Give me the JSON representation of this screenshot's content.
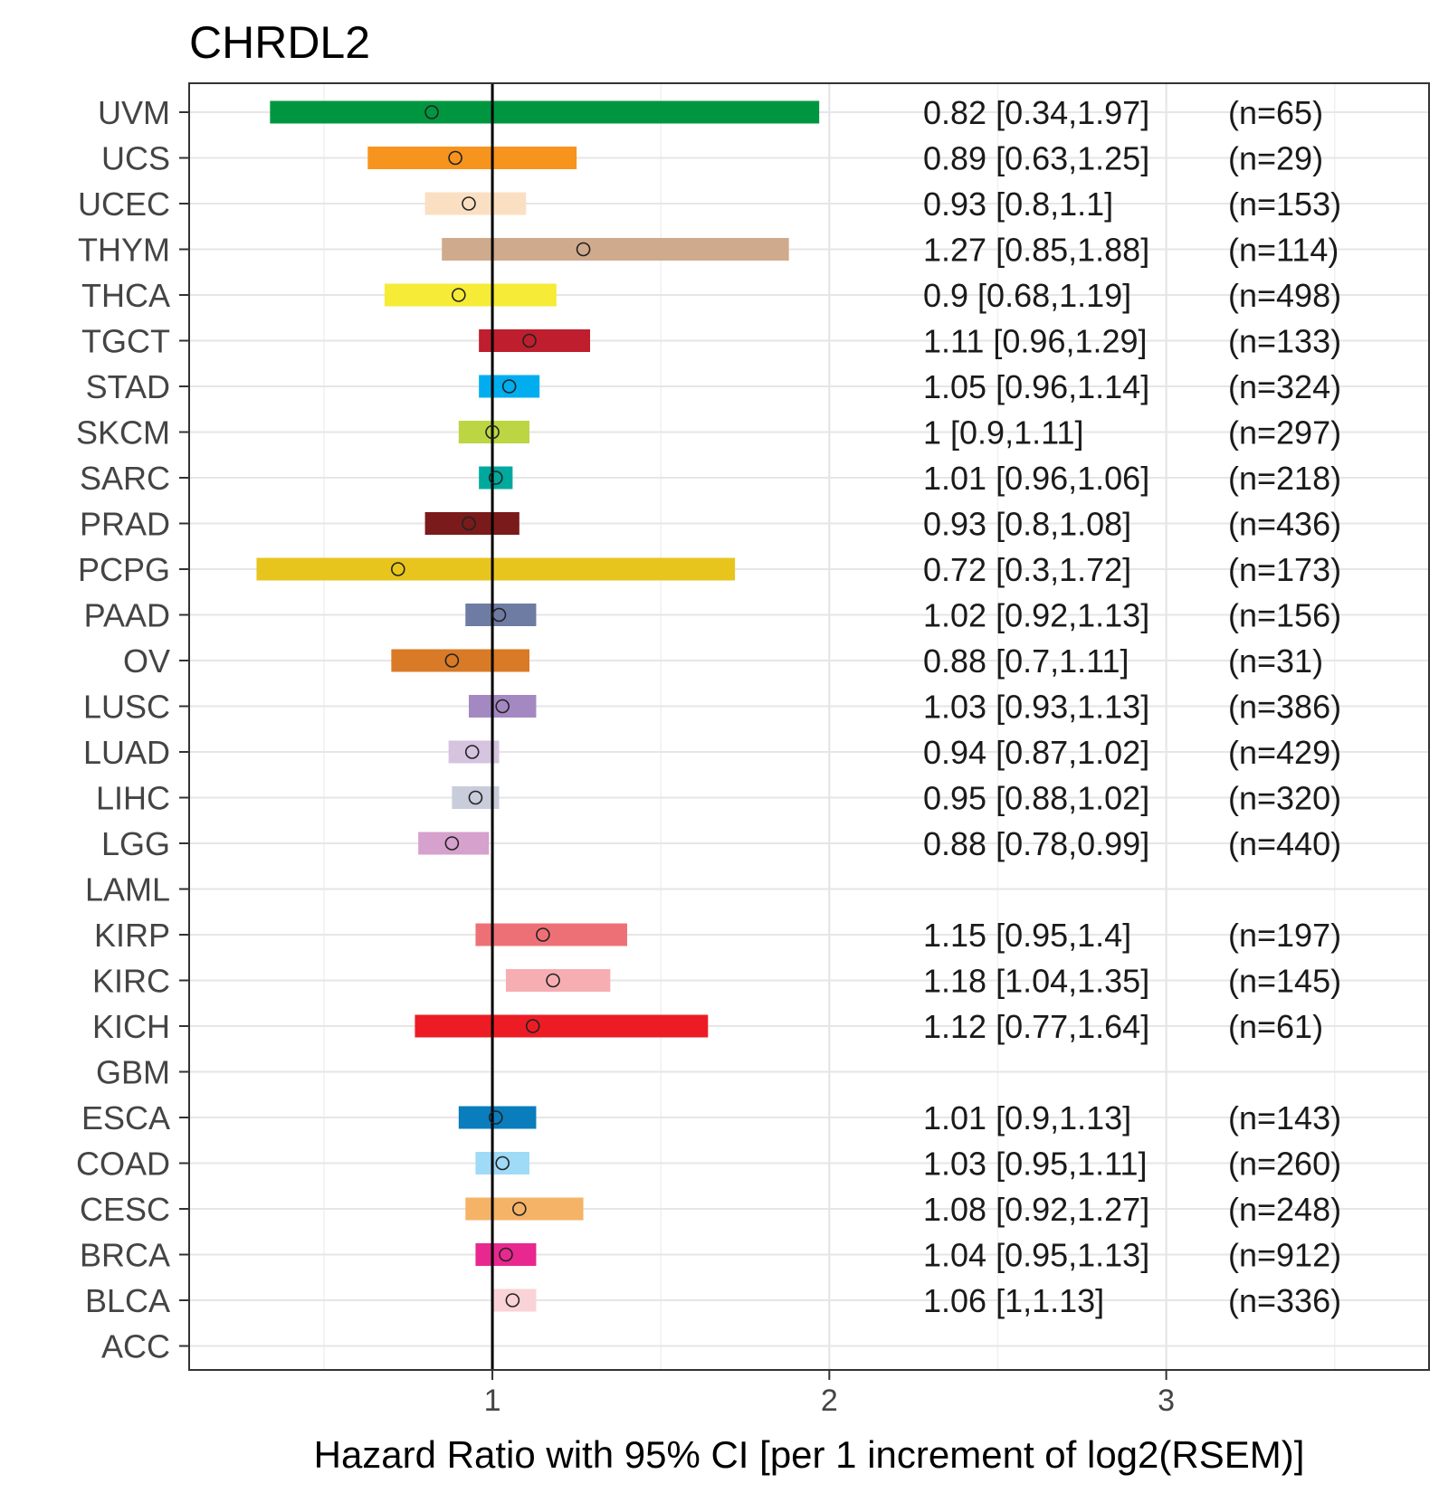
{
  "chart_data": {
    "type": "forest",
    "title": "CHRDL2",
    "xlabel": "Hazard Ratio with 95% CI [per 1 increment of log2(RSEM)]",
    "ylabel": "",
    "xlim": [
      0.1,
      3.78
    ],
    "xticks": [
      1,
      2,
      3
    ],
    "reference_line": 1,
    "grid": true,
    "rows": [
      {
        "cancer": "UVM",
        "hr": 0.82,
        "low": 0.34,
        "high": 1.97,
        "label": "0.82 [0.34,1.97]",
        "n": "(n=65)",
        "color": "#00963F"
      },
      {
        "cancer": "UCS",
        "hr": 0.89,
        "low": 0.63,
        "high": 1.25,
        "label": "0.89 [0.63,1.25]",
        "n": "(n=29)",
        "color": "#F7941E"
      },
      {
        "cancer": "UCEC",
        "hr": 0.93,
        "low": 0.8,
        "high": 1.1,
        "label": "0.93 [0.8,1.1]",
        "n": "(n=153)",
        "color": "#FBDFC2"
      },
      {
        "cancer": "THYM",
        "hr": 1.27,
        "low": 0.85,
        "high": 1.88,
        "label": "1.27 [0.85,1.88]",
        "n": "(n=114)",
        "color": "#CFAA8C"
      },
      {
        "cancer": "THCA",
        "hr": 0.9,
        "low": 0.68,
        "high": 1.19,
        "label": "0.9 [0.68,1.19]",
        "n": "(n=498)",
        "color": "#F6EB36"
      },
      {
        "cancer": "TGCT",
        "hr": 1.11,
        "low": 0.96,
        "high": 1.29,
        "label": "1.11 [0.96,1.29]",
        "n": "(n=133)",
        "color": "#BE1E2D"
      },
      {
        "cancer": "STAD",
        "hr": 1.05,
        "low": 0.96,
        "high": 1.14,
        "label": "1.05 [0.96,1.14]",
        "n": "(n=324)",
        "color": "#00AEEF"
      },
      {
        "cancer": "SKCM",
        "hr": 1,
        "low": 0.9,
        "high": 1.11,
        "label": "1 [0.9,1.11]",
        "n": "(n=297)",
        "color": "#BBD642"
      },
      {
        "cancer": "SARC",
        "hr": 1.01,
        "low": 0.96,
        "high": 1.06,
        "label": "1.01 [0.96,1.06]",
        "n": "(n=218)",
        "color": "#00A99D"
      },
      {
        "cancer": "PRAD",
        "hr": 0.93,
        "low": 0.8,
        "high": 1.08,
        "label": "0.93 [0.8,1.08]",
        "n": "(n=436)",
        "color": "#7B1A1A"
      },
      {
        "cancer": "PCPG",
        "hr": 0.72,
        "low": 0.3,
        "high": 1.72,
        "label": "0.72 [0.3,1.72]",
        "n": "(n=173)",
        "color": "#E8C51D"
      },
      {
        "cancer": "PAAD",
        "hr": 1.02,
        "low": 0.92,
        "high": 1.13,
        "label": "1.02 [0.92,1.13]",
        "n": "(n=156)",
        "color": "#6E7BA3"
      },
      {
        "cancer": "OV",
        "hr": 0.88,
        "low": 0.7,
        "high": 1.11,
        "label": "0.88 [0.7,1.11]",
        "n": "(n=31)",
        "color": "#D97A27"
      },
      {
        "cancer": "LUSC",
        "hr": 1.03,
        "low": 0.93,
        "high": 1.13,
        "label": "1.03 [0.93,1.13]",
        "n": "(n=386)",
        "color": "#A488C2"
      },
      {
        "cancer": "LUAD",
        "hr": 0.94,
        "low": 0.87,
        "high": 1.02,
        "label": "0.94 [0.87,1.02]",
        "n": "(n=429)",
        "color": "#D5C3E0"
      },
      {
        "cancer": "LIHC",
        "hr": 0.95,
        "low": 0.88,
        "high": 1.02,
        "label": "0.95 [0.88,1.02]",
        "n": "(n=320)",
        "color": "#C9CCDA"
      },
      {
        "cancer": "LGG",
        "hr": 0.88,
        "low": 0.78,
        "high": 0.99,
        "label": "0.88 [0.78,0.99]",
        "n": "(n=440)",
        "color": "#D6A1CC"
      },
      {
        "cancer": "LAML",
        "hr": null,
        "low": null,
        "high": null,
        "label": "",
        "n": "",
        "color": "#CCCCCC"
      },
      {
        "cancer": "KIRP",
        "hr": 1.15,
        "low": 0.95,
        "high": 1.4,
        "label": "1.15 [0.95,1.4]",
        "n": "(n=197)",
        "color": "#EE7077"
      },
      {
        "cancer": "KIRC",
        "hr": 1.18,
        "low": 1.04,
        "high": 1.35,
        "label": "1.18 [1.04,1.35]",
        "n": "(n=145)",
        "color": "#F7AEB3"
      },
      {
        "cancer": "KICH",
        "hr": 1.12,
        "low": 0.77,
        "high": 1.64,
        "label": "1.12 [0.77,1.64]",
        "n": "(n=61)",
        "color": "#ED1C24"
      },
      {
        "cancer": "GBM",
        "hr": null,
        "low": null,
        "high": null,
        "label": "",
        "n": "",
        "color": "#CCCCCC"
      },
      {
        "cancer": "ESCA",
        "hr": 1.01,
        "low": 0.9,
        "high": 1.13,
        "label": "1.01 [0.9,1.13]",
        "n": "(n=143)",
        "color": "#0A7DBD"
      },
      {
        "cancer": "COAD",
        "hr": 1.03,
        "low": 0.95,
        "high": 1.11,
        "label": "1.03 [0.95,1.11]",
        "n": "(n=260)",
        "color": "#9FDAF7"
      },
      {
        "cancer": "CESC",
        "hr": 1.08,
        "low": 0.92,
        "high": 1.27,
        "label": "1.08 [0.92,1.27]",
        "n": "(n=248)",
        "color": "#F5B367"
      },
      {
        "cancer": "BRCA",
        "hr": 1.04,
        "low": 0.95,
        "high": 1.13,
        "label": "1.04 [0.95,1.13]",
        "n": "(n=912)",
        "color": "#E8288F"
      },
      {
        "cancer": "BLCA",
        "hr": 1.06,
        "low": 1,
        "high": 1.13,
        "label": "1.06 [1,1.13]",
        "n": "(n=336)",
        "color": "#FAD3D6"
      },
      {
        "cancer": "ACC",
        "hr": null,
        "low": null,
        "high": null,
        "label": "",
        "n": "",
        "color": "#CCCCCC"
      }
    ]
  }
}
